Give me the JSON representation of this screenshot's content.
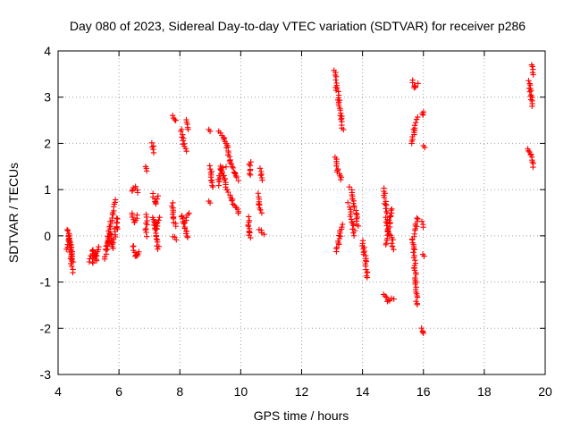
{
  "chart_data": {
    "type": "scatter",
    "title": "Day 080 of 2023, Sidereal Day-to-day VTEC variation (SDTVAR) for receiver p286",
    "xlabel": "GPS time / hours",
    "ylabel": "SDTVAR / TECUs",
    "xlim": [
      4,
      20
    ],
    "ylim": [
      -3,
      4
    ],
    "xticks": [
      "4",
      "6",
      "8",
      "10",
      "12",
      "14",
      "16",
      "18",
      "20"
    ],
    "yticks": [
      "-3",
      "-2",
      "-1",
      "0",
      "1",
      "2",
      "3",
      "4"
    ],
    "grid": true,
    "marker": "plus",
    "marker_color": "#ff0000",
    "series": [
      {
        "name": "SDTVAR",
        "tracks": [
          [
            [
              4.33,
              0.15
            ],
            [
              4.38,
              -0.2
            ],
            [
              4.42,
              -0.5
            ],
            [
              4.47,
              -0.78
            ]
          ],
          [
            [
              4.3,
              -0.3
            ],
            [
              4.36,
              0.0
            ],
            [
              4.42,
              -0.25
            ],
            [
              4.48,
              -0.55
            ]
          ],
          [
            [
              5.05,
              -0.55
            ],
            [
              5.15,
              -0.3
            ],
            [
              5.25,
              -0.45
            ],
            [
              5.32,
              -0.25
            ]
          ],
          [
            [
              5.12,
              -0.6
            ],
            [
              5.2,
              -0.4
            ],
            [
              5.28,
              -0.55
            ]
          ],
          [
            [
              5.55,
              -0.5
            ],
            [
              5.62,
              -0.1
            ],
            [
              5.7,
              0.2
            ],
            [
              5.78,
              0.45
            ],
            [
              5.88,
              0.78
            ]
          ],
          [
            [
              5.6,
              -0.3
            ],
            [
              5.7,
              0.05
            ],
            [
              5.8,
              -0.25
            ],
            [
              5.9,
              0.2
            ]
          ],
          [
            [
              5.95,
              0.4
            ],
            [
              5.95,
              0.15
            ]
          ],
          [
            [
              6.4,
              0.95
            ],
            [
              6.55,
              1.05
            ],
            [
              6.62,
              0.95
            ]
          ],
          [
            [
              6.4,
              0.5
            ],
            [
              6.5,
              0.3
            ],
            [
              6.6,
              0.45
            ]
          ],
          [
            [
              6.45,
              -0.2
            ],
            [
              6.55,
              -0.45
            ],
            [
              6.65,
              -0.35
            ]
          ],
          [
            [
              6.85,
              1.5
            ],
            [
              6.9,
              1.4
            ]
          ],
          [
            [
              6.9,
              0.45
            ],
            [
              6.9,
              0.0
            ]
          ],
          [
            [
              7.1,
              2.0
            ],
            [
              7.12,
              1.8
            ]
          ],
          [
            [
              7.1,
              0.9
            ],
            [
              7.2,
              0.7
            ],
            [
              7.3,
              0.85
            ]
          ],
          [
            [
              7.1,
              0.4
            ],
            [
              7.2,
              0.0
            ],
            [
              7.3,
              -0.3
            ]
          ],
          [
            [
              7.15,
              0.3
            ],
            [
              7.25,
              0.15
            ],
            [
              7.32,
              0.4
            ]
          ],
          [
            [
              7.75,
              2.6
            ],
            [
              7.85,
              2.5
            ]
          ],
          [
            [
              7.75,
              0.7
            ],
            [
              7.8,
              0.4
            ],
            [
              7.85,
              0.2
            ]
          ],
          [
            [
              7.78,
              0.0
            ],
            [
              7.85,
              -0.1
            ]
          ],
          [
            [
              8.05,
              2.3
            ],
            [
              8.12,
              2.0
            ],
            [
              8.2,
              1.85
            ]
          ],
          [
            [
              8.2,
              2.5
            ],
            [
              8.25,
              2.3
            ]
          ],
          [
            [
              8.05,
              0.45
            ],
            [
              8.15,
              0.3
            ],
            [
              8.3,
              0.5
            ]
          ],
          [
            [
              8.1,
              0.3
            ],
            [
              8.2,
              0.1
            ],
            [
              8.25,
              -0.05
            ]
          ],
          [
            [
              8.95,
              2.3
            ]
          ],
          [
            [
              9.0,
              1.5
            ],
            [
              9.05,
              1.2
            ],
            [
              9.1,
              1.05
            ]
          ],
          [
            [
              8.95,
              0.75
            ]
          ],
          [
            [
              9.3,
              2.25
            ],
            [
              9.45,
              2.1
            ],
            [
              9.55,
              1.9
            ],
            [
              9.65,
              1.6
            ],
            [
              9.8,
              1.35
            ],
            [
              9.9,
              1.2
            ]
          ],
          [
            [
              9.3,
              1.5
            ],
            [
              9.45,
              1.3
            ],
            [
              9.55,
              1.0
            ],
            [
              9.7,
              0.8
            ],
            [
              9.85,
              0.6
            ],
            [
              9.95,
              0.5
            ]
          ],
          [
            [
              9.25,
              1.1
            ],
            [
              9.35,
              1.45
            ],
            [
              9.5,
              1.5
            ]
          ],
          [
            [
              10.25,
              0.4
            ],
            [
              10.28,
              0.1
            ],
            [
              10.3,
              -0.05
            ]
          ],
          [
            [
              10.3,
              1.6
            ],
            [
              10.32,
              1.3
            ]
          ],
          [
            [
              10.55,
              0.9
            ],
            [
              10.62,
              0.65
            ],
            [
              10.7,
              0.5
            ]
          ],
          [
            [
              10.65,
              1.45
            ],
            [
              10.7,
              1.2
            ]
          ],
          [
            [
              10.6,
              0.15
            ],
            [
              10.75,
              0.05
            ]
          ],
          [
            [
              13.08,
              3.6
            ],
            [
              13.15,
              3.2
            ],
            [
              13.22,
              2.95
            ],
            [
              13.3,
              2.6
            ],
            [
              13.35,
              2.3
            ]
          ],
          [
            [
              13.12,
              1.7
            ],
            [
              13.2,
              1.4
            ],
            [
              13.3,
              1.2
            ]
          ],
          [
            [
              13.15,
              -0.35
            ],
            [
              13.25,
              0.0
            ],
            [
              13.32,
              0.25
            ]
          ],
          [
            [
              13.6,
              1.05
            ],
            [
              13.7,
              0.8
            ],
            [
              13.78,
              0.5
            ],
            [
              13.85,
              0.2
            ]
          ],
          [
            [
              13.55,
              0.7
            ],
            [
              13.65,
              0.3
            ],
            [
              13.75,
              0.0
            ]
          ],
          [
            [
              14.0,
              -0.1
            ],
            [
              14.05,
              -0.35
            ],
            [
              14.1,
              -0.55
            ],
            [
              14.15,
              -0.92
            ]
          ],
          [
            [
              14.7,
              1.02
            ],
            [
              14.75,
              0.7
            ],
            [
              14.8,
              0.3
            ],
            [
              14.85,
              0.05
            ]
          ],
          [
            [
              14.75,
              -0.2
            ],
            [
              14.85,
              0.1
            ],
            [
              14.92,
              0.4
            ],
            [
              14.98,
              0.6
            ]
          ],
          [
            [
              14.95,
              0.0
            ],
            [
              15.0,
              -0.3
            ]
          ],
          [
            [
              14.7,
              -1.25
            ],
            [
              14.85,
              -1.42
            ],
            [
              15.0,
              -1.35
            ]
          ],
          [
            [
              15.6,
              2.0
            ],
            [
              15.7,
              2.3
            ],
            [
              15.8,
              2.55
            ]
          ],
          [
            [
              15.65,
              3.35
            ],
            [
              15.72,
              3.2
            ],
            [
              15.8,
              3.3
            ]
          ],
          [
            [
              15.6,
              -0.05
            ],
            [
              15.68,
              -0.3
            ],
            [
              15.72,
              -0.7
            ],
            [
              15.75,
              -1.0
            ],
            [
              15.8,
              -1.35
            ]
          ],
          [
            [
              15.7,
              0.0
            ],
            [
              15.75,
              0.2
            ],
            [
              15.8,
              0.4
            ]
          ],
          [
            [
              15.75,
              -1.4
            ],
            [
              15.8,
              -1.5
            ]
          ],
          [
            [
              15.95,
              0.3
            ],
            [
              16.0,
              0.2
            ]
          ],
          [
            [
              15.98,
              -0.4
            ]
          ],
          [
            [
              16.0,
              1.95
            ]
          ],
          [
            [
              16.0,
              2.7
            ],
            [
              15.98,
              2.62
            ]
          ],
          [
            [
              15.95,
              -2.0
            ],
            [
              15.98,
              -2.12
            ]
          ],
          [
            [
              19.45,
              3.35
            ],
            [
              19.5,
              3.2
            ],
            [
              19.55,
              3.0
            ],
            [
              19.58,
              2.8
            ]
          ],
          [
            [
              19.55,
              3.7
            ],
            [
              19.6,
              3.5
            ]
          ],
          [
            [
              19.45,
              1.9
            ],
            [
              19.52,
              1.75
            ],
            [
              19.6,
              1.5
            ]
          ]
        ]
      }
    ]
  }
}
